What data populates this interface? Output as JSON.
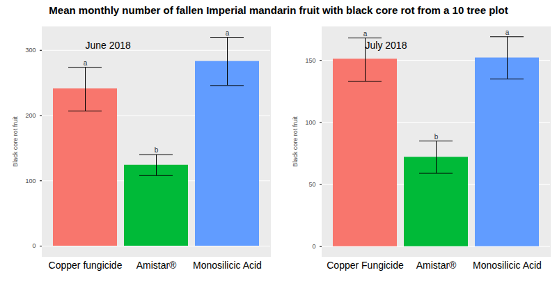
{
  "title": "Mean monthly number of fallen Imperial mandarin fruit with black core rot from a 10 tree plot",
  "chart_data": [
    {
      "type": "bar",
      "subtitle": "June 2018",
      "y_label": "Black core rot fruit",
      "categories": [
        "Copper fungicide",
        "Amistar®",
        "Monosilicic Acid"
      ],
      "values": [
        241,
        124,
        283
      ],
      "error_low": [
        207,
        108,
        246
      ],
      "error_high": [
        274,
        140,
        320
      ],
      "group_letters": [
        "a",
        "b",
        "a"
      ],
      "colors": [
        "#F8766D",
        "#00BA38",
        "#619CFF"
      ],
      "ylim": [
        -16,
        336
      ],
      "yticks": [
        0,
        100,
        200,
        300
      ],
      "grid": true
    },
    {
      "type": "bar",
      "subtitle": "July 2018",
      "y_label": "Black core rot fruit",
      "categories": [
        "Copper Fungicide",
        "Amistar®",
        "Monosilicic Acid"
      ],
      "values": [
        151,
        72,
        152
      ],
      "error_low": [
        133,
        59,
        135
      ],
      "error_high": [
        168,
        85,
        169
      ],
      "group_letters": [
        "a",
        "b",
        "a"
      ],
      "colors": [
        "#F8766D",
        "#00BA38",
        "#619CFF"
      ],
      "ylim": [
        -8,
        177
      ],
      "yticks": [
        0,
        50,
        100,
        150
      ],
      "grid": true
    }
  ]
}
